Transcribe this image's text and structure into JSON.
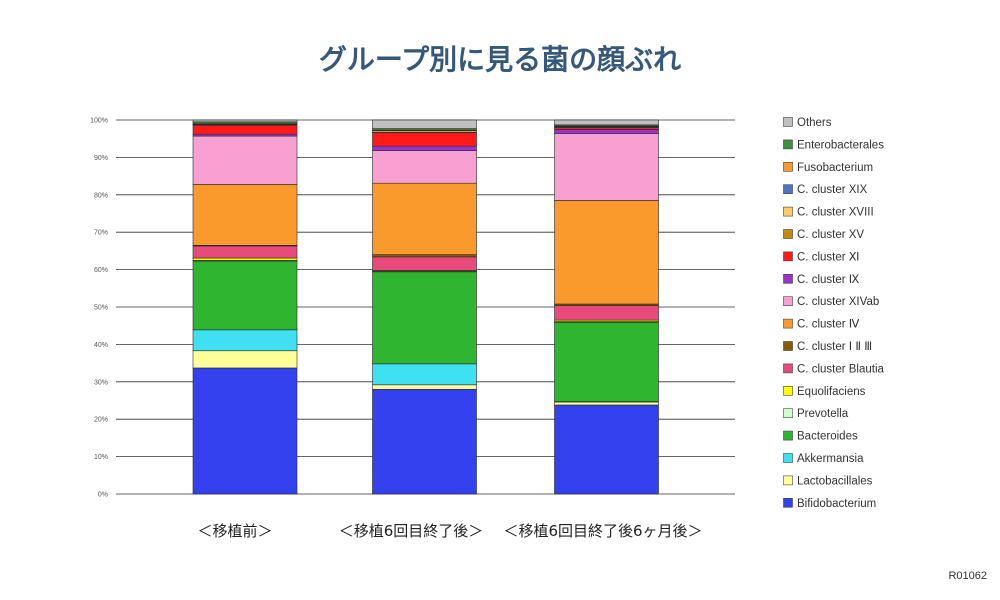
{
  "footer_code": "R01062",
  "chart_data": {
    "type": "bar",
    "stacked": true,
    "title": "グループ別に見る菌の顔ぶれ",
    "xlabel": "",
    "ylabel": "",
    "categories": [
      "＜移植前＞",
      "＜移植6回目終了後＞",
      "＜移植6回目終了後6ヶ月後＞"
    ],
    "ylim": [
      0,
      100
    ],
    "yticks": [
      "0%",
      "10%",
      "20%",
      "30%",
      "40%",
      "50%",
      "60%",
      "70%",
      "80%",
      "90%",
      "100%"
    ],
    "grid": true,
    "legend_position": "right",
    "title_color": "#36587a",
    "series": [
      {
        "name": "Bifidobacterium",
        "color": "#3341ee",
        "values": [
          33.7,
          28.0,
          23.8
        ]
      },
      {
        "name": "Lactobacillales",
        "color": "#ffff99",
        "values": [
          4.6,
          1.2,
          0.8
        ]
      },
      {
        "name": "Akkermansia",
        "color": "#3ee0f2",
        "values": [
          5.6,
          5.6,
          0.1
        ]
      },
      {
        "name": "Bacteroides",
        "color": "#2fb52f",
        "values": [
          18.4,
          24.6,
          21.2
        ]
      },
      {
        "name": "Prevotella",
        "color": "#ccffcc",
        "values": [
          0.2,
          0.2,
          0.2
        ]
      },
      {
        "name": "Equolifaciens",
        "color": "#ffff00",
        "values": [
          0.6,
          0.2,
          0.4
        ]
      },
      {
        "name": "C. cluster Blautia",
        "color": "#e84a7c",
        "values": [
          3.2,
          3.6,
          3.9
        ]
      },
      {
        "name": "C. cluster Ⅰ Ⅱ Ⅲ",
        "color": "#8a5a00",
        "values": [
          0.2,
          0.6,
          0.4
        ]
      },
      {
        "name": "C. cluster Ⅳ",
        "color": "#fa9a2c",
        "values": [
          16.3,
          19.1,
          27.7
        ]
      },
      {
        "name": "C. cluster XIVab",
        "color": "#f9a0d2",
        "values": [
          12.9,
          8.7,
          17.9
        ]
      },
      {
        "name": "C. cluster Ⅸ",
        "color": "#9933cc",
        "values": [
          0.5,
          1.2,
          1.1
        ]
      },
      {
        "name": "C. cluster Ⅺ",
        "color": "#ff1a1a",
        "values": [
          2.4,
          3.6,
          0.5
        ]
      },
      {
        "name": "C. cluster XV",
        "color": "#c98a0a",
        "values": [
          0.1,
          0.1,
          0.1
        ]
      },
      {
        "name": "C. cluster XVIII",
        "color": "#ffcc66",
        "values": [
          0.1,
          0.4,
          0.1
        ]
      },
      {
        "name": "C. cluster XIX",
        "color": "#4f74c0",
        "values": [
          0.1,
          0.1,
          0.1
        ]
      },
      {
        "name": "Fusobacterium",
        "color": "#fb9a30",
        "values": [
          0.1,
          0.1,
          0.1
        ]
      },
      {
        "name": "Enterobacterales",
        "color": "#3f8f3f",
        "values": [
          0.5,
          0.4,
          0.3
        ]
      },
      {
        "name": "Others",
        "color": "#c0c0c0",
        "values": [
          0.5,
          2.3,
          1.3
        ]
      }
    ]
  }
}
